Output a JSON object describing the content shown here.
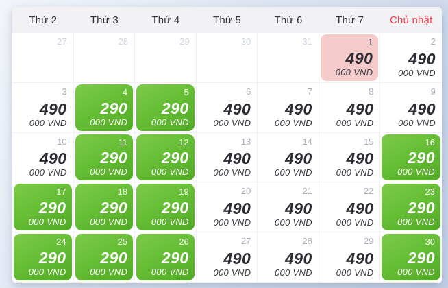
{
  "calendar": {
    "weekday_headers": [
      {
        "label": "Thứ 2",
        "red": false
      },
      {
        "label": "Thứ 3",
        "red": false
      },
      {
        "label": "Thứ 4",
        "red": false
      },
      {
        "label": "Thứ 5",
        "red": false
      },
      {
        "label": "Thứ 6",
        "red": false
      },
      {
        "label": "Thứ 7",
        "red": false
      },
      {
        "label": "Chủ nhật",
        "red": true
      }
    ],
    "price_unit": "000 VND",
    "colors": {
      "promo_green_start": "#7ecb49",
      "promo_green_end": "#50aa23",
      "highlight_pink": "#f5caca",
      "sunday_red": "#f5404b",
      "price_text_dark": "#2c2c34",
      "muted_day": "#ced3dc",
      "normal_day": "#a9aeb9"
    },
    "weeks": [
      [
        {
          "day": "27",
          "type": "muted"
        },
        {
          "day": "28",
          "type": "muted"
        },
        {
          "day": "29",
          "type": "muted"
        },
        {
          "day": "30",
          "type": "muted"
        },
        {
          "day": "31",
          "type": "muted"
        },
        {
          "day": "1",
          "type": "pink",
          "price": "490"
        },
        {
          "day": "2",
          "type": "normal",
          "price": "490"
        }
      ],
      [
        {
          "day": "3",
          "type": "normal",
          "price": "490"
        },
        {
          "day": "4",
          "type": "green",
          "price": "290"
        },
        {
          "day": "5",
          "type": "green",
          "price": "290"
        },
        {
          "day": "6",
          "type": "normal",
          "price": "490"
        },
        {
          "day": "7",
          "type": "normal",
          "price": "490"
        },
        {
          "day": "8",
          "type": "normal",
          "price": "490"
        },
        {
          "day": "9",
          "type": "normal",
          "price": "490"
        }
      ],
      [
        {
          "day": "10",
          "type": "normal",
          "price": "490"
        },
        {
          "day": "11",
          "type": "green",
          "price": "290"
        },
        {
          "day": "12",
          "type": "green",
          "price": "290"
        },
        {
          "day": "13",
          "type": "normal",
          "price": "490"
        },
        {
          "day": "14",
          "type": "normal",
          "price": "490"
        },
        {
          "day": "15",
          "type": "normal",
          "price": "490"
        },
        {
          "day": "16",
          "type": "green",
          "price": "290"
        }
      ],
      [
        {
          "day": "17",
          "type": "green",
          "price": "290"
        },
        {
          "day": "18",
          "type": "green",
          "price": "290"
        },
        {
          "day": "19",
          "type": "green",
          "price": "290"
        },
        {
          "day": "20",
          "type": "normal",
          "price": "490"
        },
        {
          "day": "21",
          "type": "normal",
          "price": "490"
        },
        {
          "day": "22",
          "type": "normal",
          "price": "490"
        },
        {
          "day": "23",
          "type": "green",
          "price": "290"
        }
      ],
      [
        {
          "day": "24",
          "type": "green",
          "price": "290"
        },
        {
          "day": "25",
          "type": "green",
          "price": "290"
        },
        {
          "day": "26",
          "type": "green",
          "price": "290"
        },
        {
          "day": "27",
          "type": "normal",
          "price": "490"
        },
        {
          "day": "28",
          "type": "normal",
          "price": "490"
        },
        {
          "day": "29",
          "type": "normal",
          "price": "490"
        },
        {
          "day": "30",
          "type": "green",
          "price": "290"
        }
      ]
    ]
  }
}
